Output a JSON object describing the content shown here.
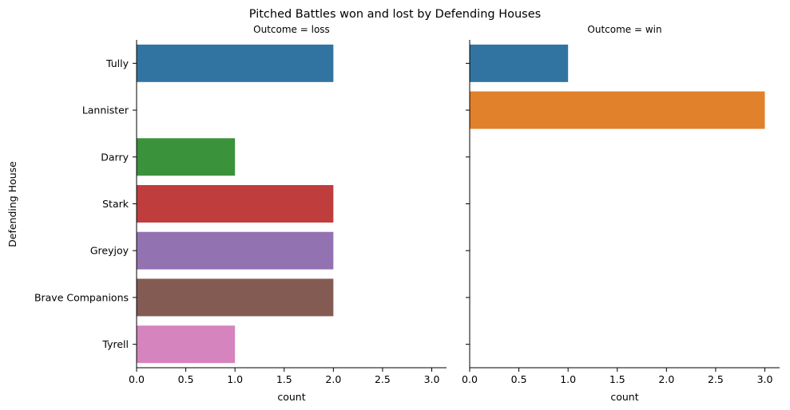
{
  "chart_data": {
    "type": "bar",
    "orientation": "horizontal",
    "title": "Pitched Battles won and lost by Defending Houses",
    "ylabel": "Defending House",
    "categories": [
      "Tully",
      "Lannister",
      "Darry",
      "Stark",
      "Greyjoy",
      "Brave Companions",
      "Tyrell"
    ],
    "colors": [
      "#3274a1",
      "#e1812c",
      "#3a923a",
      "#c03d3e",
      "#9372b2",
      "#845b53",
      "#d684bd"
    ],
    "grid": false,
    "legend": "none",
    "xlim": [
      0,
      3.15
    ],
    "xticks": [
      "0.0",
      "0.5",
      "1.0",
      "1.5",
      "2.0",
      "2.5",
      "3.0"
    ],
    "panels": [
      {
        "facet_title": "Outcome = loss",
        "xlabel": "count",
        "values": [
          2,
          0,
          1,
          2,
          2,
          2,
          1
        ]
      },
      {
        "facet_title": "Outcome = win",
        "xlabel": "count",
        "values": [
          1,
          3,
          0,
          0,
          0,
          0,
          0
        ]
      }
    ]
  }
}
